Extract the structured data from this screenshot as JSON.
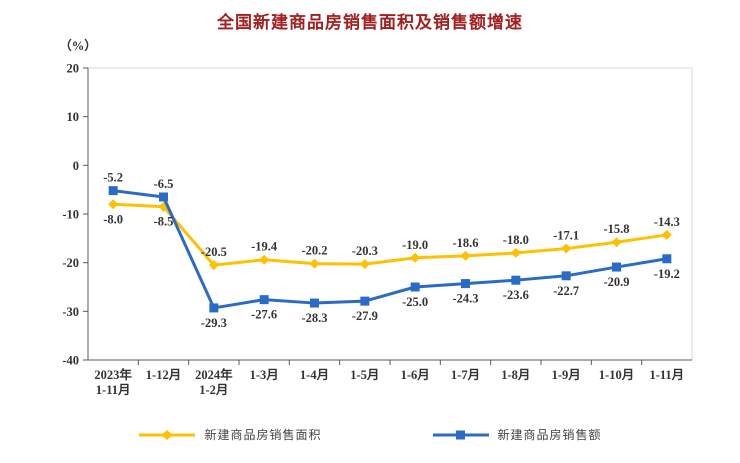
{
  "chart_data": {
    "type": "line",
    "title": "全国新建商品房销售面积及销售额增速",
    "y_unit": "（%）",
    "ylim": [
      -40,
      20
    ],
    "yticks": [
      20,
      10,
      0,
      -10,
      -20,
      -30,
      -40
    ],
    "categories": [
      "2023年\n1-11月",
      "1-12月",
      "2024年\n1-2月",
      "1-3月",
      "1-4月",
      "1-5月",
      "1-6月",
      "1-7月",
      "1-8月",
      "1-9月",
      "1-10月",
      "1-11月"
    ],
    "series": [
      {
        "name": "新建商品房销售面积",
        "marker": "diamond",
        "color": "#FFC000",
        "values": [
          -8.0,
          -8.5,
          -20.5,
          -19.4,
          -20.2,
          -20.3,
          -19.0,
          -18.6,
          -18.0,
          -17.1,
          -15.8,
          -14.3
        ]
      },
      {
        "name": "新建商品房销售额",
        "marker": "square",
        "color": "#2B6BC8",
        "values": [
          -5.2,
          -6.5,
          -29.3,
          -27.6,
          -28.3,
          -27.9,
          -25.0,
          -24.3,
          -23.6,
          -22.7,
          -20.9,
          -19.2
        ]
      }
    ],
    "legend_position": "bottom",
    "grid": "off",
    "appearance": {
      "title_color": "#a32020",
      "axis_color": "#595959",
      "plot_border_color": "#d9d9d9",
      "text_color": "#333333"
    }
  }
}
